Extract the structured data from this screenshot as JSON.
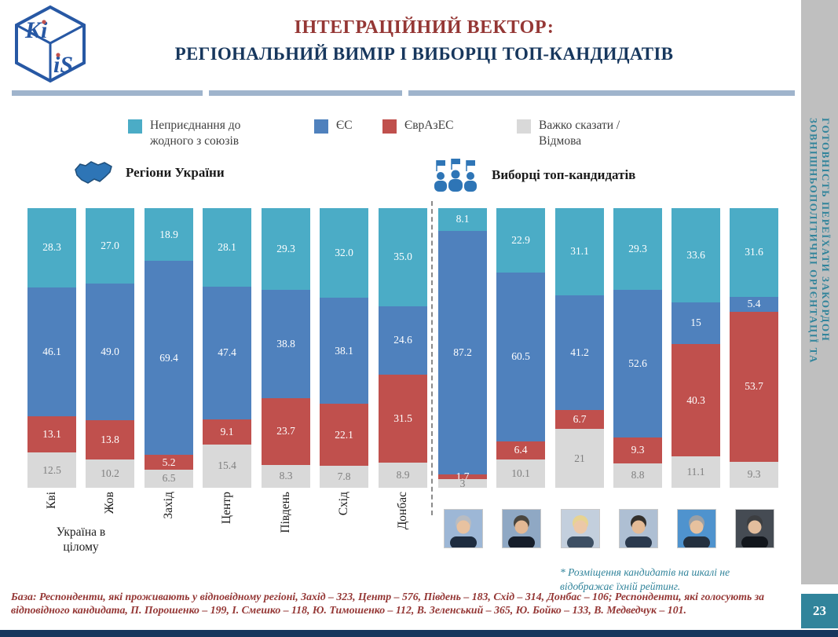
{
  "slide": {
    "logo": {
      "top": "Ki",
      "bottom": "iS"
    },
    "title_line1": "ІНТЕГРАЦІЙНИЙ ВЕКТОР:",
    "title_line2": "РЕГІОНАЛЬНИЙ ВИМІР І ВИБОРЦІ ТОП-КАНДИДАТІВ",
    "sidebar_line1": "ЗОВНІШНЬОПОЛІТИЧНІ ОРІЄНТАЦІЇ ТА",
    "sidebar_line2": "ГОТОВНІСТЬ ПЕРЕЇХАТИ ЗАКОРДОН",
    "page_number": "23",
    "footnote": "* Розміщення кандидатів на шкалі не відображає їхній рейтинг.",
    "base_text": "База: Респонденти, які проживають у відповідному регіоні, Захід – 323, Центр – 576, Південь – 183, Схід – 314, Донбас – 106; Респонденти, які голосують за відповідного кандидата, П. Порошенко – 199, І. Смешко – 118, Ю. Тимошенко – 112, В. Зеленський – 365, Ю. Бойко – 133, В. Медведчук – 101."
  },
  "legend": {
    "items": [
      {
        "label_line1": "Неприєднання до",
        "label_line2": "жодного з союзів",
        "color": "#4BACC6"
      },
      {
        "label_line1": "ЄС",
        "label_line2": "",
        "color": "#4F81BD"
      },
      {
        "label_line1": "ЄврАзЕС",
        "label_line2": "",
        "color": "#C0504D"
      },
      {
        "label_line1": "Важко сказати /",
        "label_line2": "Відмова",
        "color": "#D9D9D9"
      }
    ]
  },
  "sections": {
    "regions": "Регіони України",
    "voters": "Виборці топ-кандидатів"
  },
  "chart_data": {
    "type": "bar",
    "stacked": true,
    "value_unit": "percent",
    "ylim": [
      0,
      100
    ],
    "legend_position": "top",
    "series": [
      {
        "key": "none",
        "name": "Неприєднання до жодного з союзів",
        "color": "#4BACC6"
      },
      {
        "key": "eu",
        "name": "ЄС",
        "color": "#4F81BD"
      },
      {
        "key": "eaeu",
        "name": "ЄврАзЕС",
        "color": "#C0504D"
      },
      {
        "key": "dk",
        "name": "Важко сказати / Відмова",
        "color": "#D9D9D9"
      }
    ],
    "groups": [
      {
        "id": "regions",
        "title": "Регіони України",
        "sublabel": "Україна в цілому",
        "bars": [
          {
            "id": "kvi",
            "label": "Кві",
            "values": {
              "none": 28.3,
              "eu": 46.1,
              "eaeu": 13.1,
              "dk": 12.5
            },
            "labels": {
              "none": "28.3",
              "eu": "46.1",
              "eaeu": "13.1",
              "dk": "12.5"
            }
          },
          {
            "id": "zhov",
            "label": "Жов",
            "values": {
              "none": 27.0,
              "eu": 49.0,
              "eaeu": 13.8,
              "dk": 10.2
            },
            "labels": {
              "none": "27.0",
              "eu": "49.0",
              "eaeu": "13.8",
              "dk": "10.2"
            }
          },
          {
            "id": "zakhid",
            "label": "Захід",
            "values": {
              "none": 18.9,
              "eu": 69.4,
              "eaeu": 5.2,
              "dk": 6.5
            },
            "labels": {
              "none": "18.9",
              "eu": "69.4",
              "eaeu": "5.2",
              "dk": "6.5"
            }
          },
          {
            "id": "tsentr",
            "label": "Центр",
            "values": {
              "none": 28.1,
              "eu": 47.4,
              "eaeu": 9.1,
              "dk": 15.4
            },
            "labels": {
              "none": "28.1",
              "eu": "47.4",
              "eaeu": "9.1",
              "dk": "15.4"
            }
          },
          {
            "id": "pivden",
            "label": "Південь",
            "values": {
              "none": 29.3,
              "eu": 38.8,
              "eaeu": 23.7,
              "dk": 8.3
            },
            "labels": {
              "none": "29.3",
              "eu": "38.8",
              "eaeu": "23.7",
              "dk": "8.3"
            }
          },
          {
            "id": "skhid",
            "label": "Схід",
            "values": {
              "none": 32.0,
              "eu": 38.1,
              "eaeu": 22.1,
              "dk": 7.8
            },
            "labels": {
              "none": "32.0",
              "eu": "38.1",
              "eaeu": "22.1",
              "dk": "7.8"
            }
          },
          {
            "id": "donbas",
            "label": "Донбас",
            "values": {
              "none": 35.0,
              "eu": 24.6,
              "eaeu": 31.5,
              "dk": 8.9
            },
            "labels": {
              "none": "35.0",
              "eu": "24.6",
              "eaeu": "31.5",
              "dk": "8.9"
            }
          }
        ]
      },
      {
        "id": "candidates",
        "title": "Виборці топ-кандидатів",
        "bars": [
          {
            "id": "poroshenko",
            "label": "П. Порошенко",
            "values": {
              "none": 8.1,
              "eu": 87.2,
              "eaeu": 1.7,
              "dk": 3
            },
            "labels": {
              "none": "8.1",
              "eu": "87.2",
              "eaeu": "1.7",
              "dk": "3"
            }
          },
          {
            "id": "smeshko",
            "label": "І. Смешко",
            "values": {
              "none": 22.9,
              "eu": 60.5,
              "eaeu": 6.4,
              "dk": 10.1
            },
            "labels": {
              "none": "22.9",
              "eu": "60.5",
              "eaeu": "6.4",
              "dk": "10.1"
            }
          },
          {
            "id": "tymoshenko",
            "label": "Ю. Тимошенко",
            "values": {
              "none": 31.1,
              "eu": 41.2,
              "eaeu": 6.7,
              "dk": 21
            },
            "labels": {
              "none": "31.1",
              "eu": "41.2",
              "eaeu": "6.7",
              "dk": "21"
            }
          },
          {
            "id": "zelensky",
            "label": "В. Зеленський",
            "values": {
              "none": 29.3,
              "eu": 52.6,
              "eaeu": 9.3,
              "dk": 8.8
            },
            "labels": {
              "none": "29.3",
              "eu": "52.6",
              "eaeu": "9.3",
              "dk": "8.8"
            }
          },
          {
            "id": "boyko",
            "label": "Ю. Бойко",
            "values": {
              "none": 33.6,
              "eu": 15,
              "eaeu": 40.3,
              "dk": 11.1
            },
            "labels": {
              "none": "33.6",
              "eu": "15",
              "eaeu": "40.3",
              "dk": "11.1"
            }
          },
          {
            "id": "medvedchuk",
            "label": "В. Медведчук",
            "values": {
              "none": 31.6,
              "eu": 5.4,
              "eaeu": 53.7,
              "dk": 9.3
            },
            "labels": {
              "none": "31.6",
              "eu": "5.4",
              "eaeu": "53.7",
              "dk": "9.3"
            }
          }
        ]
      }
    ]
  }
}
